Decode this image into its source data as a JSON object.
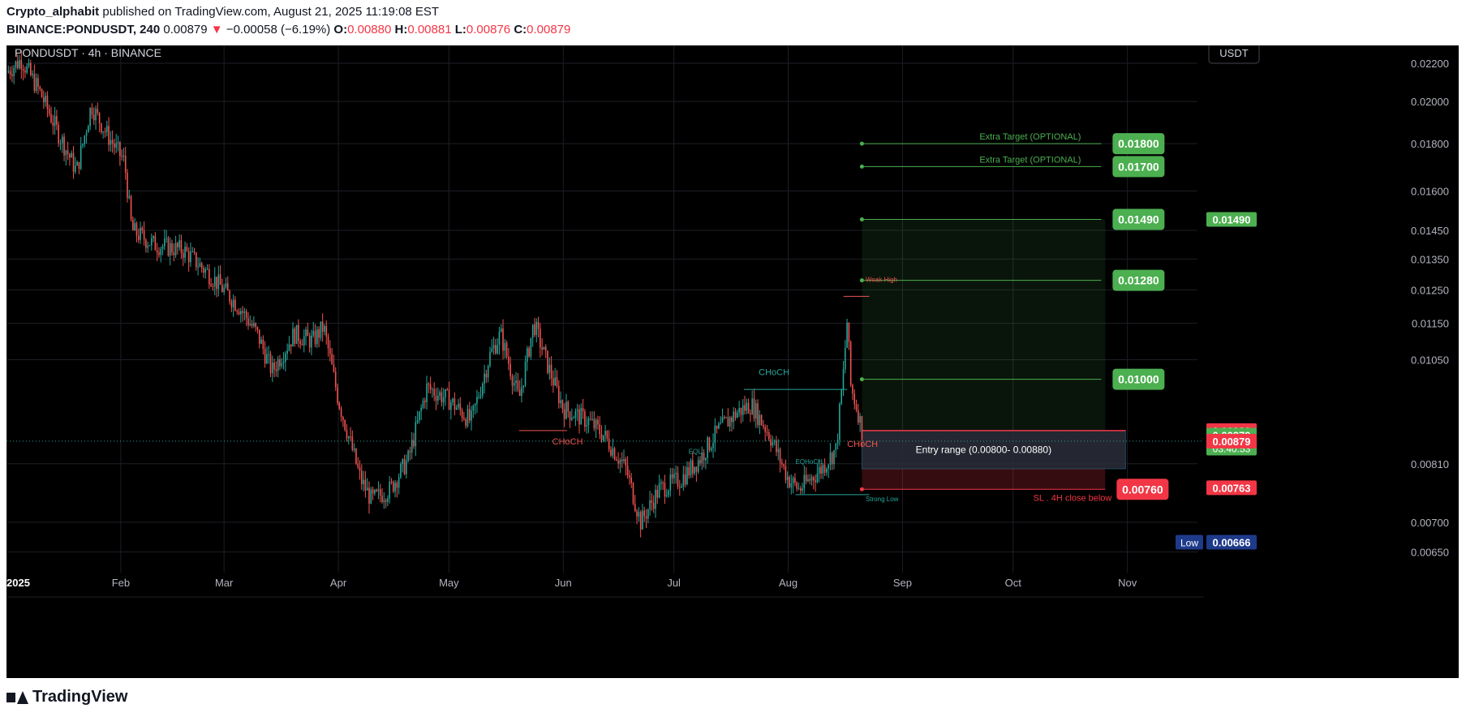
{
  "header": {
    "author": "Crypto_alphabit",
    "published": "published on TradingView.com, August 21, 2025 11:19:08 EST",
    "symbol": "BINANCE:PONDUSDT, 240",
    "last": "0.00879",
    "arrow": "▼",
    "change": "−0.00058 (−6.19%)",
    "o_label": "O:",
    "o": "0.00880",
    "h_label": "H:",
    "h": "0.00881",
    "l_label": "L:",
    "l": "0.00876",
    "c_label": "C:",
    "c": "0.00879"
  },
  "legend": "PONDUSDT · 4h · BINANCE",
  "currency_button": "USDT",
  "footer": {
    "brand": "TradingView"
  },
  "colors": {
    "up": "#26a69a",
    "down": "#ef5350",
    "target": "#4caf50",
    "stop": "#f23645",
    "entry_box": "#2a2e39"
  },
  "chart_data": {
    "type": "candlestick",
    "x_axis": {
      "ticks": [
        "2025",
        "Feb",
        "Mar",
        "Apr",
        "May",
        "Jun",
        "Jul",
        "Aug",
        "Sep",
        "Oct",
        "Nov"
      ],
      "range": [
        "2025-01-01",
        "2025-11-20"
      ]
    },
    "y_axis": {
      "ticks": [
        "0.02200",
        "0.02000",
        "0.01800",
        "0.01600",
        "0.01450",
        "0.01350",
        "0.01250",
        "0.01150",
        "0.01050",
        "0.00810",
        "0.00700",
        "0.00650"
      ],
      "range": [
        0.0063,
        0.023
      ],
      "scale": "log"
    },
    "price_path": [
      [
        "2025-01-01",
        0.0215
      ],
      [
        "2025-01-05",
        0.0222
      ],
      [
        "2025-01-10",
        0.0205
      ],
      [
        "2025-01-15",
        0.0185
      ],
      [
        "2025-01-20",
        0.0168
      ],
      [
        "2025-01-24",
        0.0198
      ],
      [
        "2025-01-28",
        0.0185
      ],
      [
        "2025-02-02",
        0.0172
      ],
      [
        "2025-02-04",
        0.0145
      ],
      [
        "2025-02-10",
        0.014
      ],
      [
        "2025-02-18",
        0.0138
      ],
      [
        "2025-02-25",
        0.013
      ],
      [
        "2025-03-05",
        0.012
      ],
      [
        "2025-03-10",
        0.0112
      ],
      [
        "2025-03-14",
        0.0102
      ],
      [
        "2025-03-20",
        0.0112
      ],
      [
        "2025-03-25",
        0.011
      ],
      [
        "2025-03-28",
        0.0114
      ],
      [
        "2025-04-01",
        0.0095
      ],
      [
        "2025-04-07",
        0.0078
      ],
      [
        "2025-04-10",
        0.0074
      ],
      [
        "2025-04-15",
        0.0076
      ],
      [
        "2025-04-20",
        0.0082
      ],
      [
        "2025-04-25",
        0.0098
      ],
      [
        "2025-05-01",
        0.0095
      ],
      [
        "2025-05-07",
        0.009
      ],
      [
        "2025-05-12",
        0.0106
      ],
      [
        "2025-05-15",
        0.0112
      ],
      [
        "2025-05-20",
        0.0095
      ],
      [
        "2025-05-24",
        0.0115
      ],
      [
        "2025-05-28",
        0.0103
      ],
      [
        "2025-06-01",
        0.0093
      ],
      [
        "2025-06-08",
        0.009
      ],
      [
        "2025-06-12",
        0.0087
      ],
      [
        "2025-06-18",
        0.008
      ],
      [
        "2025-06-22",
        0.007
      ],
      [
        "2025-06-27",
        0.0076
      ],
      [
        "2025-07-03",
        0.0078
      ],
      [
        "2025-07-08",
        0.0082
      ],
      [
        "2025-07-13",
        0.0088
      ],
      [
        "2025-07-18",
        0.0092
      ],
      [
        "2025-07-22",
        0.0094
      ],
      [
        "2025-07-27",
        0.0087
      ],
      [
        "2025-08-01",
        0.0078
      ],
      [
        "2025-08-04",
        0.0076
      ],
      [
        "2025-08-10",
        0.008
      ],
      [
        "2025-08-14",
        0.0084
      ],
      [
        "2025-08-16",
        0.0102
      ],
      [
        "2025-08-17",
        0.0116
      ],
      [
        "2025-08-18",
        0.0098
      ],
      [
        "2025-08-20",
        0.0092
      ],
      [
        "2025-08-21",
        0.00879
      ]
    ],
    "levels": [
      {
        "name": "target-1800",
        "price": 0.018,
        "label": "0.01800",
        "note": "Extra Target (OPTIONAL)",
        "color": "#4caf50"
      },
      {
        "name": "target-1700",
        "price": 0.017,
        "label": "0.01700",
        "note": "Extra Target (OPTIONAL)",
        "color": "#4caf50"
      },
      {
        "name": "target-1490",
        "price": 0.0149,
        "label": "0.01490",
        "note": "",
        "color": "#4caf50"
      },
      {
        "name": "target-1280",
        "price": 0.0128,
        "label": "0.01280",
        "note": "",
        "color": "#4caf50"
      },
      {
        "name": "target-1000",
        "price": 0.01,
        "label": "0.01000",
        "note": "",
        "color": "#4caf50"
      },
      {
        "name": "stop-loss",
        "price": 0.0076,
        "label": "0.00760",
        "note": "SL . 4H close below",
        "color": "#f23645"
      }
    ],
    "entry_range": {
      "low": 0.008,
      "high": 0.0088,
      "label": "Entry range    (0.00800- 0.00880)"
    },
    "position_box": {
      "start": "2025-08-21",
      "end": "2025-10-26",
      "top": 0.0149,
      "bottom": 0.0088
    },
    "annotations": [
      {
        "text": "CHoCH",
        "date": "2025-07-24",
        "price": 0.0101,
        "color": "#26a69a"
      },
      {
        "text": "CHoCH",
        "date": "2025-05-29",
        "price": 0.0085,
        "color": "#ef5350"
      },
      {
        "text": "CHoCH",
        "date": "2025-08-17",
        "price": 0.00845,
        "color": "#ef5350"
      },
      {
        "text": "EQL",
        "date": "2025-07-05",
        "price": 0.0083,
        "color": "#26a69a"
      },
      {
        "text": "EQHoCH",
        "date": "2025-08-03",
        "price": 0.0081,
        "color": "#26a69a"
      },
      {
        "text": "Weak High",
        "date": "2025-08-22",
        "price": 0.01275,
        "color": "#ef5350"
      },
      {
        "text": "Strong Low",
        "date": "2025-08-22",
        "price": 0.00738,
        "color": "#26a69a"
      }
    ],
    "price_badges": [
      {
        "name": "target-badge",
        "label": "0.01490",
        "price": 0.0149,
        "color": "#4caf50"
      },
      {
        "name": "high-badge",
        "label": "0.00880",
        "price": 0.0088,
        "color": "#f23645"
      },
      {
        "name": "last-badge",
        "label": "0.00879",
        "sub": "03:40:53",
        "price": 0.0087,
        "color": "#4caf50"
      },
      {
        "name": "close-badge",
        "label": "0.00879",
        "price": 0.00857,
        "color": "#f23645"
      },
      {
        "name": "sl-badge",
        "label": "0.00763",
        "price": 0.00763,
        "color": "#f23645"
      },
      {
        "name": "low-badge",
        "label": "0.00666",
        "tag": "Low",
        "price": 0.00666,
        "color": "#1e3a8a"
      }
    ]
  }
}
